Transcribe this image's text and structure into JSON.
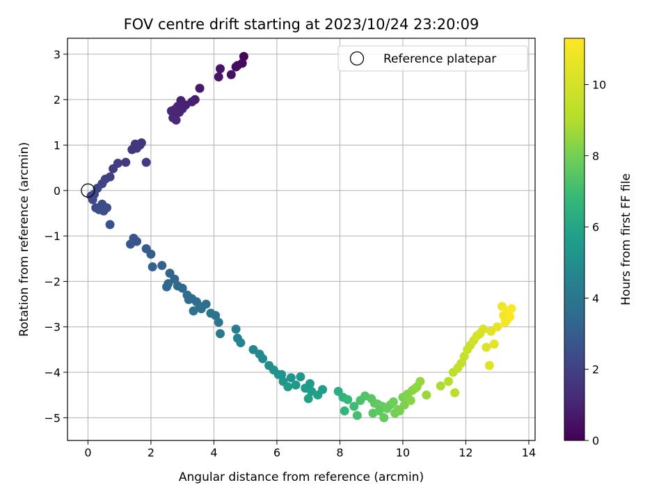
{
  "chart_data": {
    "type": "scatter",
    "title": "FOV centre drift starting at 2023/10/24 23:20:09",
    "xlabel": "Angular distance from reference (arcmin)",
    "ylabel": "Rotation from reference (arcmin)",
    "xlim": [
      -0.65,
      14.2
    ],
    "ylim": [
      -5.5,
      3.35
    ],
    "xticks": [
      0,
      2,
      4,
      6,
      8,
      10,
      12,
      14
    ],
    "yticks": [
      -5,
      -4,
      -3,
      -2,
      -1,
      0,
      1,
      2,
      3
    ],
    "grid": true,
    "legend": {
      "position": "top-right",
      "entries": [
        "Reference platepar"
      ]
    },
    "reference_point": {
      "x": 0,
      "y": 0
    },
    "colorbar": {
      "label": "Hours from first FF file",
      "colormap": "viridis",
      "range": [
        0,
        11.3
      ],
      "ticks": [
        0,
        2,
        4,
        6,
        8,
        10
      ]
    },
    "series": [
      {
        "x": [
          4.95,
          4.9,
          4.75,
          4.7,
          4.55,
          4.2,
          4.15,
          3.55,
          3.4,
          3.3,
          3.1,
          3.0,
          2.9,
          2.85,
          2.75,
          2.7,
          2.65,
          2.8,
          2.95,
          1.65,
          1.7,
          1.55,
          1.5,
          1.4,
          1.85,
          1.2,
          0.95,
          0.8,
          0.7,
          0.55,
          0.45,
          0.3,
          0.2,
          0.1,
          0.15,
          0.25,
          0.35,
          0.45,
          0.5,
          0.6,
          0.7,
          1.45,
          1.55,
          1.35,
          1.85,
          2.0,
          2.05,
          2.35,
          2.6,
          2.55,
          2.75,
          2.85,
          3.0,
          2.5,
          3.15,
          3.3,
          3.45,
          3.55,
          3.6,
          3.75,
          3.9,
          4.05,
          4.15,
          4.2,
          3.35,
          3.2,
          4.7,
          4.75,
          4.85,
          5.25,
          5.45,
          5.55,
          5.75,
          5.9,
          6.05,
          6.2,
          6.45,
          6.6,
          6.75,
          6.9,
          7.0,
          7.1,
          7.3,
          7.45,
          7.05,
          6.15,
          6.35,
          7.95,
          8.1,
          8.25,
          8.15,
          8.45,
          8.65,
          8.8,
          9.0,
          9.1,
          9.2,
          9.35,
          9.5,
          9.6,
          9.7,
          9.85,
          10.0,
          10.15,
          10.3,
          10.4,
          10.55,
          10.75,
          9.05,
          9.4,
          9.75,
          10.05,
          10.45,
          8.55,
          9.25,
          9.9,
          10.25,
          11.2,
          11.45,
          11.6,
          11.75,
          11.85,
          11.95,
          12.05,
          12.15,
          12.25,
          12.35,
          12.45,
          12.55,
          12.65,
          12.8,
          12.9,
          13.0,
          11.65,
          12.75,
          13.15,
          13.2,
          13.3,
          13.35,
          13.45,
          13.25,
          13.4
        ],
        "y": [
          2.95,
          2.8,
          2.75,
          2.72,
          2.55,
          2.68,
          2.5,
          2.25,
          2.0,
          1.95,
          1.88,
          1.8,
          1.72,
          1.85,
          1.78,
          1.6,
          1.75,
          1.55,
          1.98,
          1.0,
          1.05,
          0.93,
          1.02,
          0.9,
          0.62,
          0.62,
          0.6,
          0.48,
          0.3,
          0.25,
          0.15,
          0.05,
          -0.08,
          -0.12,
          -0.2,
          -0.38,
          -0.42,
          -0.3,
          -0.45,
          -0.38,
          -0.75,
          -1.05,
          -1.12,
          -1.18,
          -1.28,
          -1.4,
          -1.68,
          -1.65,
          -1.82,
          -2.05,
          -1.95,
          -2.1,
          -2.15,
          -2.12,
          -2.3,
          -2.38,
          -2.45,
          -2.55,
          -2.6,
          -2.5,
          -2.7,
          -2.75,
          -2.9,
          -3.15,
          -2.65,
          -2.4,
          -3.05,
          -3.25,
          -3.35,
          -3.5,
          -3.6,
          -3.7,
          -3.85,
          -3.95,
          -4.05,
          -4.2,
          -4.12,
          -4.28,
          -4.1,
          -4.35,
          -4.58,
          -4.42,
          -4.5,
          -4.38,
          -4.25,
          -4.05,
          -4.32,
          -4.42,
          -4.55,
          -4.6,
          -4.85,
          -4.75,
          -4.62,
          -4.52,
          -4.58,
          -4.68,
          -4.7,
          -4.75,
          -4.8,
          -4.72,
          -4.65,
          -4.82,
          -4.55,
          -4.48,
          -4.4,
          -4.35,
          -4.2,
          -4.5,
          -4.9,
          -5.0,
          -4.9,
          -4.72,
          -4.32,
          -4.95,
          -4.85,
          -4.85,
          -4.62,
          -4.3,
          -4.2,
          -4.0,
          -3.9,
          -3.8,
          -3.65,
          -3.5,
          -3.4,
          -3.3,
          -3.2,
          -3.15,
          -3.05,
          -3.45,
          -3.1,
          -3.38,
          -3.0,
          -4.45,
          -3.85,
          -2.55,
          -2.75,
          -2.85,
          -2.65,
          -2.6,
          -2.9,
          -2.78
        ],
        "c": [
          0.1,
          0.2,
          0.3,
          0.35,
          0.45,
          0.55,
          0.6,
          0.75,
          0.85,
          0.9,
          0.95,
          1.0,
          1.05,
          1.0,
          1.1,
          1.15,
          1.1,
          1.2,
          0.95,
          1.6,
          1.55,
          1.65,
          1.6,
          1.65,
          1.75,
          1.75,
          1.8,
          1.85,
          1.95,
          2.0,
          2.05,
          2.1,
          2.2,
          2.25,
          2.3,
          2.35,
          2.4,
          2.35,
          2.45,
          2.4,
          2.55,
          2.7,
          2.75,
          2.8,
          2.9,
          3.0,
          3.15,
          3.15,
          3.25,
          3.35,
          3.3,
          3.4,
          3.45,
          3.4,
          3.55,
          3.6,
          3.65,
          3.75,
          3.8,
          3.7,
          3.85,
          3.9,
          4.0,
          4.15,
          3.8,
          3.6,
          4.35,
          4.45,
          4.5,
          4.7,
          4.8,
          4.9,
          5.05,
          5.15,
          5.25,
          5.35,
          5.3,
          5.45,
          5.35,
          5.6,
          5.8,
          5.65,
          5.75,
          5.6,
          5.5,
          5.3,
          5.55,
          6.3,
          6.5,
          6.8,
          6.7,
          7.0,
          7.2,
          7.35,
          7.45,
          7.55,
          7.65,
          7.75,
          7.85,
          7.8,
          7.9,
          8.0,
          8.1,
          8.2,
          8.3,
          8.35,
          8.5,
          8.6,
          7.5,
          7.7,
          7.95,
          8.15,
          8.45,
          7.1,
          7.6,
          8.05,
          8.3,
          8.9,
          9.1,
          9.25,
          9.4,
          9.5,
          9.6,
          9.7,
          9.8,
          9.9,
          10.0,
          10.1,
          10.2,
          10.3,
          10.4,
          10.5,
          10.6,
          9.2,
          10.35,
          10.9,
          11.0,
          11.1,
          11.15,
          11.25,
          10.95,
          11.2
        ]
      }
    ]
  }
}
